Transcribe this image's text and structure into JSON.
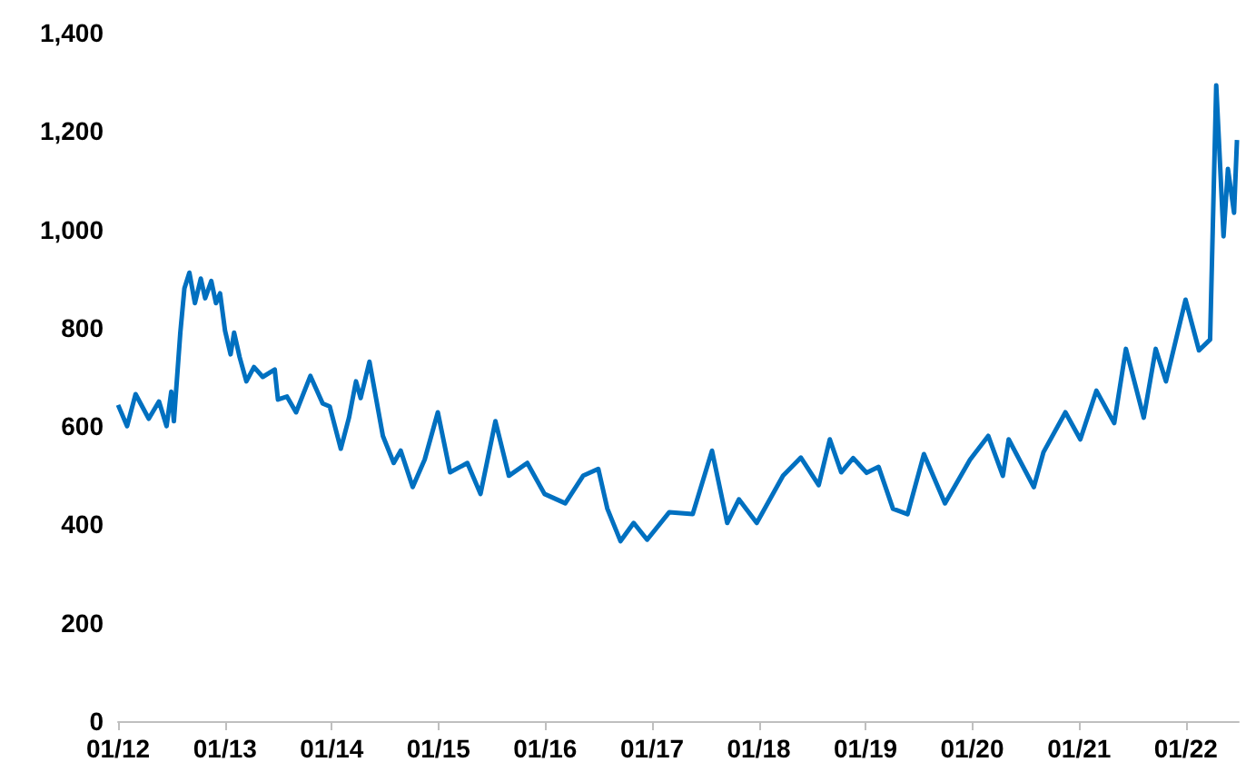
{
  "chart_data": {
    "type": "line",
    "x": [
      "2012-01-01",
      "2012-02-01",
      "2012-03-01",
      "2012-04-15",
      "2012-05-20",
      "2012-06-15",
      "2012-07-01",
      "2012-07-10",
      "2012-08-01",
      "2012-08-15",
      "2012-09-01",
      "2012-09-20",
      "2012-10-10",
      "2012-10-25",
      "2012-11-15",
      "2012-12-01",
      "2012-12-15",
      "2013-01-01",
      "2013-01-20",
      "2013-02-01",
      "2013-02-20",
      "2013-03-15",
      "2013-04-10",
      "2013-05-10",
      "2013-06-20",
      "2013-07-01",
      "2013-08-01",
      "2013-09-01",
      "2013-10-20",
      "2013-12-01",
      "2013-12-25",
      "2014-02-01",
      "2014-03-01",
      "2014-03-25",
      "2014-04-10",
      "2014-05-10",
      "2014-06-25",
      "2014-08-01",
      "2014-08-25",
      "2014-10-05",
      "2014-11-15",
      "2014-12-30",
      "2015-02-10",
      "2015-04-10",
      "2015-05-25",
      "2015-07-15",
      "2015-08-30",
      "2015-11-01",
      "2015-12-30",
      "2016-03-10",
      "2016-05-10",
      "2016-07-01",
      "2016-08-01",
      "2016-09-15",
      "2016-10-30",
      "2016-12-15",
      "2017-03-01",
      "2017-05-20",
      "2017-07-25",
      "2017-09-15",
      "2017-10-25",
      "2017-12-25",
      "2018-03-25",
      "2018-05-25",
      "2018-07-25",
      "2018-09-01",
      "2018-10-10",
      "2018-11-20",
      "2019-01-05",
      "2019-02-15",
      "2019-04-05",
      "2019-05-25",
      "2019-07-20",
      "2019-09-30",
      "2019-12-25",
      "2020-02-25",
      "2020-04-15",
      "2020-05-05",
      "2020-07-30",
      "2020-09-01",
      "2020-11-15",
      "2021-01-05",
      "2021-03-01",
      "2021-05-01",
      "2021-06-10",
      "2021-08-10",
      "2021-09-20",
      "2021-10-25",
      "2021-12-31",
      "2022-02-15",
      "2022-03-25",
      "2022-04-15",
      "2022-05-10",
      "2022-05-25",
      "2022-06-15",
      "2022-06-25"
    ],
    "series": [
      {
        "color": "#0070c0",
        "values": [
          643,
          600,
          665,
          615,
          650,
          600,
          670,
          610,
          790,
          880,
          912,
          850,
          900,
          860,
          895,
          850,
          870,
          794,
          746,
          790,
          740,
          691,
          720,
          700,
          715,
          654,
          660,
          628,
          702,
          646,
          640,
          554,
          617,
          691,
          657,
          731,
          580,
          525,
          550,
          476,
          532,
          628,
          506,
          525,
          462,
          610,
          499,
          525,
          462,
          443,
          499,
          513,
          432,
          366,
          403,
          369,
          425,
          421,
          550,
          403,
          451,
          403,
          499,
          536,
          480,
          573,
          506,
          535,
          505,
          517,
          432,
          421,
          543,
          443,
          532,
          580,
          499,
          573,
          476,
          547,
          628,
          573,
          672,
          606,
          757,
          617,
          757,
          691,
          857,
          754,
          776,
          1293,
          986,
          1123,
          1034,
          1182
        ]
      }
    ],
    "xlim": [
      "2012-01-01",
      "2022-07-01"
    ],
    "xticks": [
      {
        "value": "2012-01-01",
        "label": "01/12"
      },
      {
        "value": "2013-01-01",
        "label": "01/13"
      },
      {
        "value": "2014-01-01",
        "label": "01/14"
      },
      {
        "value": "2015-01-01",
        "label": "01/15"
      },
      {
        "value": "2016-01-01",
        "label": "01/16"
      },
      {
        "value": "2017-01-01",
        "label": "01/17"
      },
      {
        "value": "2018-01-01",
        "label": "01/18"
      },
      {
        "value": "2019-01-01",
        "label": "01/19"
      },
      {
        "value": "2020-01-01",
        "label": "01/20"
      },
      {
        "value": "2021-01-01",
        "label": "01/21"
      },
      {
        "value": "2022-01-01",
        "label": "01/22"
      }
    ],
    "ylim": [
      0,
      1400
    ],
    "yticks": [
      {
        "value": 0,
        "label": "0"
      },
      {
        "value": 200,
        "label": "200"
      },
      {
        "value": 400,
        "label": "400"
      },
      {
        "value": 600,
        "label": "600"
      },
      {
        "value": 800,
        "label": "800"
      },
      {
        "value": 1000,
        "label": "1,000"
      },
      {
        "value": 1200,
        "label": "1,200"
      },
      {
        "value": 1400,
        "label": "1,400"
      }
    ],
    "grid": false,
    "marker": "none",
    "line_style": "solid"
  }
}
